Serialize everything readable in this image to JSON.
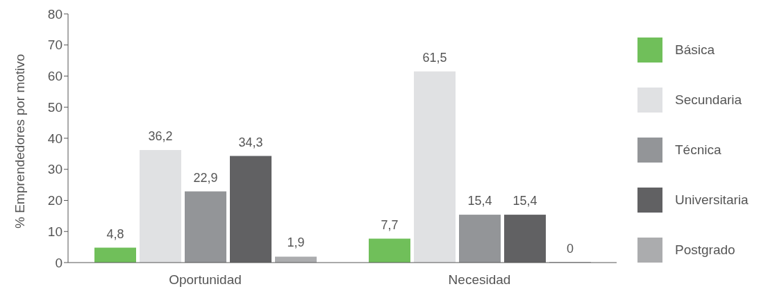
{
  "chart_data": {
    "type": "bar",
    "ylabel": "% Emprendedores por motivo",
    "categories": [
      "Oportunidad",
      "Necesidad"
    ],
    "series": [
      {
        "name": "Básica",
        "color": "#70bf5a",
        "values": [
          4.8,
          7.7
        ],
        "value_labels": [
          "4,8",
          "7,7"
        ]
      },
      {
        "name": "Secundaria",
        "color": "#e0e1e3",
        "values": [
          36.2,
          61.5
        ],
        "value_labels": [
          "36,2",
          "61,5"
        ]
      },
      {
        "name": "Técnica",
        "color": "#939598",
        "values": [
          22.9,
          15.4
        ],
        "value_labels": [
          "22,9",
          "15,4"
        ]
      },
      {
        "name": "Universitaria",
        "color": "#616163",
        "values": [
          34.3,
          15.4
        ],
        "value_labels": [
          "34,3",
          "15,4"
        ]
      },
      {
        "name": "Postgrado",
        "color": "#abacae",
        "values": [
          1.9,
          0
        ],
        "value_labels": [
          "1,9",
          "0"
        ]
      }
    ],
    "ylim": [
      0,
      80
    ],
    "yticks": [
      0,
      10,
      20,
      30,
      40,
      50,
      60,
      70,
      80
    ],
    "grid": false,
    "legend": "right"
  }
}
